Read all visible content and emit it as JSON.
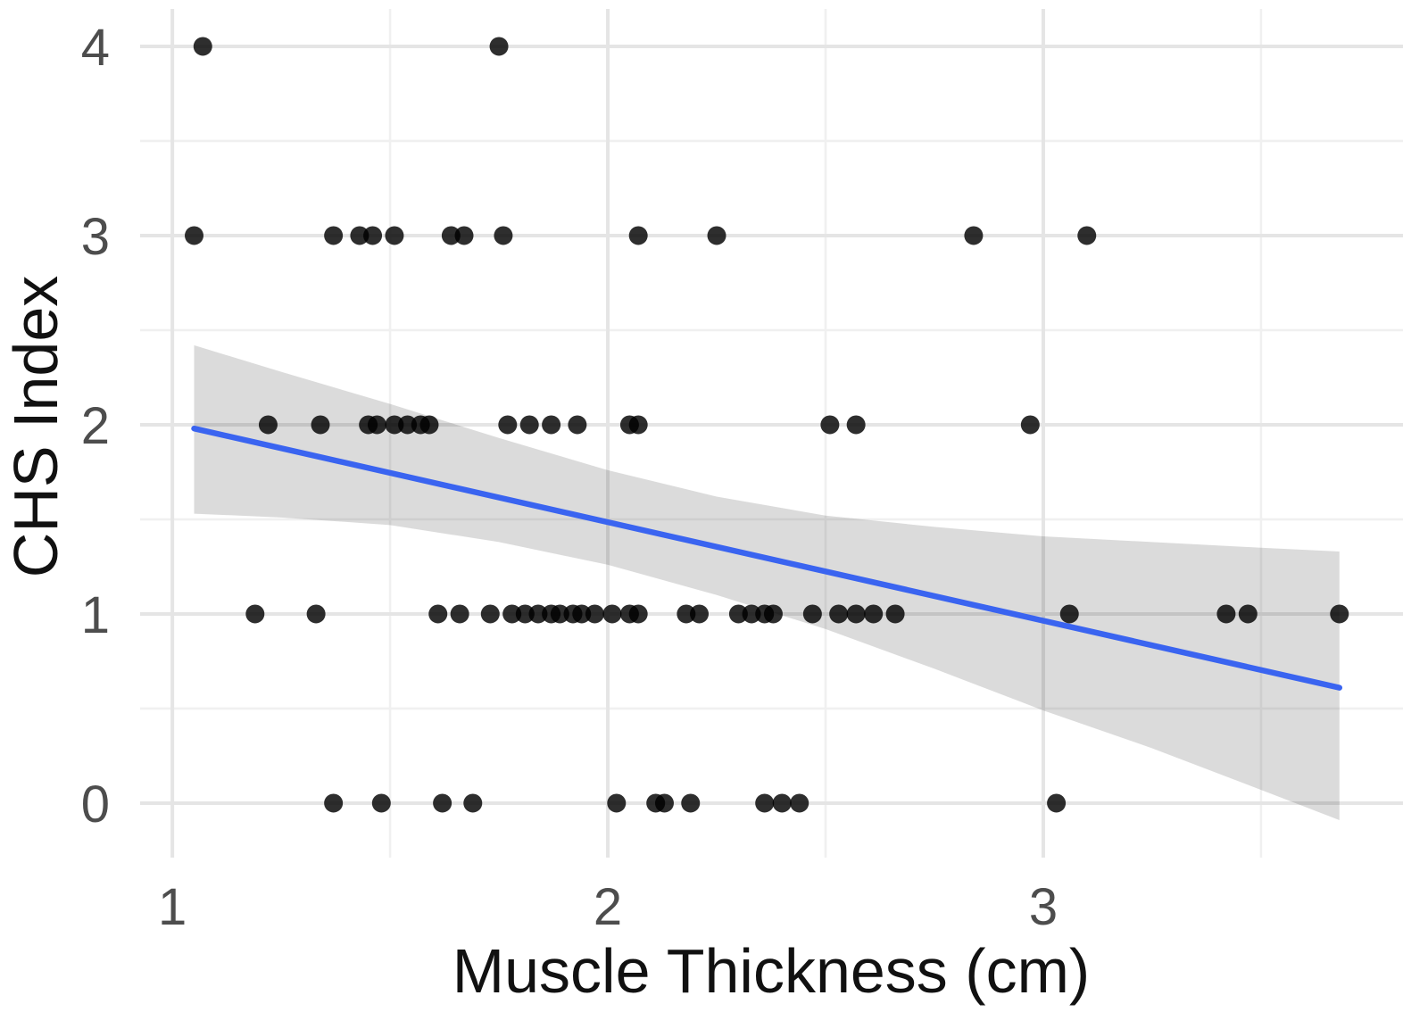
{
  "chart_data": {
    "type": "scatter",
    "title": "",
    "xlabel": "Muscle Thickness (cm)",
    "ylabel": "CHS Index",
    "xlim": [
      0.926,
      3.826
    ],
    "ylim": [
      -0.288,
      4.198
    ],
    "grid": "on",
    "legend": "none",
    "x_ticks": {
      "values": [
        1,
        2,
        3
      ],
      "labels": [
        "1",
        "2",
        "3"
      ]
    },
    "x_minor_ticks": [
      1.5,
      2.5,
      3.5
    ],
    "y_ticks": {
      "values": [
        0,
        1,
        2,
        3,
        4
      ],
      "labels": [
        "0",
        "1",
        "2",
        "3",
        "4"
      ]
    },
    "y_minor_ticks": [
      0.5,
      1.5,
      2.5,
      3.5
    ],
    "points": [
      [
        1.07,
        4
      ],
      [
        1.75,
        4
      ],
      [
        1.05,
        3
      ],
      [
        1.37,
        3
      ],
      [
        1.43,
        3
      ],
      [
        1.46,
        3
      ],
      [
        1.51,
        3
      ],
      [
        1.64,
        3
      ],
      [
        1.67,
        3
      ],
      [
        1.76,
        3
      ],
      [
        2.07,
        3
      ],
      [
        2.25,
        3
      ],
      [
        2.84,
        3
      ],
      [
        3.1,
        3
      ],
      [
        1.22,
        2
      ],
      [
        1.34,
        2
      ],
      [
        1.45,
        2
      ],
      [
        1.47,
        2
      ],
      [
        1.51,
        2
      ],
      [
        1.54,
        2
      ],
      [
        1.57,
        2
      ],
      [
        1.59,
        2
      ],
      [
        1.77,
        2
      ],
      [
        1.82,
        2
      ],
      [
        1.87,
        2
      ],
      [
        1.93,
        2
      ],
      [
        2.05,
        2
      ],
      [
        2.07,
        2
      ],
      [
        2.51,
        2
      ],
      [
        2.57,
        2
      ],
      [
        2.97,
        2
      ],
      [
        1.19,
        1
      ],
      [
        1.33,
        1
      ],
      [
        1.61,
        1
      ],
      [
        1.66,
        1
      ],
      [
        1.73,
        1
      ],
      [
        1.78,
        1
      ],
      [
        1.81,
        1
      ],
      [
        1.84,
        1
      ],
      [
        1.87,
        1
      ],
      [
        1.89,
        1
      ],
      [
        1.92,
        1
      ],
      [
        1.94,
        1
      ],
      [
        1.97,
        1
      ],
      [
        2.01,
        1
      ],
      [
        2.05,
        1
      ],
      [
        2.07,
        1
      ],
      [
        2.18,
        1
      ],
      [
        2.21,
        1
      ],
      [
        2.3,
        1
      ],
      [
        2.33,
        1
      ],
      [
        2.36,
        1
      ],
      [
        2.38,
        1
      ],
      [
        2.47,
        1
      ],
      [
        2.53,
        1
      ],
      [
        2.57,
        1
      ],
      [
        2.61,
        1
      ],
      [
        2.66,
        1
      ],
      [
        3.06,
        1
      ],
      [
        3.42,
        1
      ],
      [
        3.47,
        1
      ],
      [
        3.68,
        1
      ],
      [
        1.37,
        0
      ],
      [
        1.48,
        0
      ],
      [
        1.62,
        0
      ],
      [
        1.69,
        0
      ],
      [
        2.02,
        0
      ],
      [
        2.11,
        0
      ],
      [
        2.13,
        0
      ],
      [
        2.19,
        0
      ],
      [
        2.36,
        0
      ],
      [
        2.4,
        0
      ],
      [
        2.44,
        0
      ],
      [
        3.03,
        0
      ]
    ],
    "regression_line": {
      "x": [
        1.05,
        3.68
      ],
      "y": [
        1.98,
        0.61
      ]
    },
    "confidence_band": {
      "x": [
        1.05,
        1.25,
        1.5,
        1.75,
        2.0,
        2.25,
        2.5,
        2.75,
        3.0,
        3.25,
        3.5,
        3.68
      ],
      "upper": [
        2.42,
        2.28,
        2.11,
        1.93,
        1.76,
        1.62,
        1.52,
        1.46,
        1.41,
        1.38,
        1.35,
        1.33
      ],
      "lower": [
        1.53,
        1.51,
        1.47,
        1.38,
        1.26,
        1.1,
        0.92,
        0.71,
        0.49,
        0.29,
        0.07,
        -0.09
      ]
    },
    "colors": {
      "point": "#000000",
      "point_opacity": 0.82,
      "line": "#3A64F0",
      "band": "#000000",
      "band_opacity": 0.14,
      "grid_major": "#E5E5E5",
      "grid_minor": "#F0F0F0",
      "tick_label": "#4D4D4D",
      "axis_title": "#111111",
      "background": "#FFFFFF"
    },
    "marker": {
      "radius": 10.5
    }
  }
}
